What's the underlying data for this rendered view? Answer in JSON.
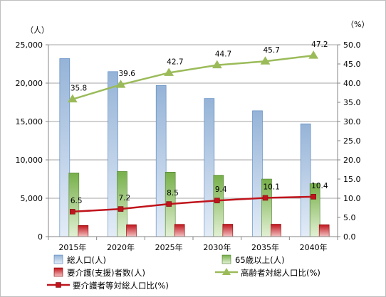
{
  "chart_data": {
    "type": "bar",
    "categories": [
      "2015年",
      "2020年",
      "2025年",
      "2030年",
      "2035年",
      "2040年"
    ],
    "series": [
      {
        "name": "総人口(人)",
        "kind": "bar",
        "axis": "left",
        "values": [
          23200,
          21500,
          19700,
          18000,
          16400,
          14700
        ],
        "color": "#95b3d7"
      },
      {
        "name": "65歳以上(人)",
        "kind": "bar",
        "axis": "left",
        "values": [
          8300,
          8500,
          8400,
          8000,
          7500,
          6900
        ],
        "color": "#77b04a"
      },
      {
        "name": "要介護(支援)者数(人)",
        "kind": "bar",
        "axis": "left",
        "values": [
          1450,
          1550,
          1600,
          1620,
          1620,
          1550
        ],
        "color": "#c0141c"
      },
      {
        "name": "高齢者対総人口比(%)",
        "kind": "line",
        "axis": "right",
        "values": [
          35.8,
          39.6,
          42.7,
          44.7,
          45.7,
          47.2
        ],
        "labels": [
          "35.8",
          "39.6",
          "42.7",
          "44.7",
          "45.7",
          "47.2"
        ],
        "color": "#9bbb59",
        "marker": "triangle"
      },
      {
        "name": "要介護者等対総人口比(%)",
        "kind": "line",
        "axis": "right",
        "values": [
          6.5,
          7.2,
          8.5,
          9.4,
          10.1,
          10.4
        ],
        "labels": [
          "6.5",
          "7.2",
          "8.5",
          "9.4",
          "10.1",
          "10.4"
        ],
        "color": "#c0141c",
        "marker": "square"
      }
    ],
    "y_left": {
      "unit": "（人）",
      "lim": [
        0,
        25000
      ],
      "ticks": [
        "0",
        "5,000",
        "10,000",
        "15,000",
        "20,000",
        "25,000"
      ],
      "tick_values": [
        0,
        5000,
        10000,
        15000,
        20000,
        25000
      ]
    },
    "y_right": {
      "unit": "（%）",
      "lim": [
        0,
        50
      ],
      "ticks": [
        "0.0",
        "5.0",
        "10.0",
        "15.0",
        "20.0",
        "25.0",
        "30.0",
        "35.0",
        "40.0",
        "45.0",
        "50.0"
      ],
      "tick_values": [
        0,
        5,
        10,
        15,
        20,
        25,
        30,
        35,
        40,
        45,
        50
      ]
    },
    "grid": true,
    "legend_position": "bottom"
  }
}
